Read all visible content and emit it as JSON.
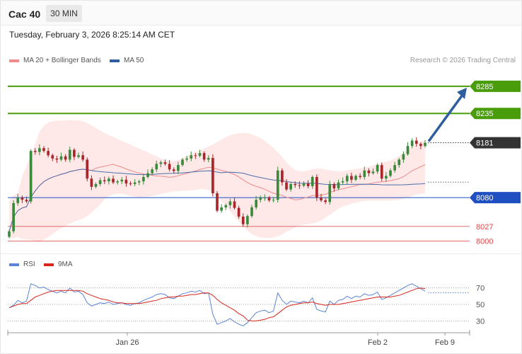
{
  "header": {
    "instrument": "Cac 40",
    "timeframe": "30 MIN",
    "datetime": "Tuesday, February 3, 2026 8:25:14 AM CET"
  },
  "legend": {
    "bollinger": "MA 20 + Bollinger Bands",
    "ma50": "MA 50",
    "copyright": "Research © 2026 Trading Central"
  },
  "rsi_legend": {
    "rsi": "RSI",
    "ma9": "9MA"
  },
  "colors": {
    "resistance": "#4a9d0a",
    "support": "#1f4fc0",
    "lower_support": "#e04848",
    "price": "#333333",
    "bollinger_fill": "#fde0e0",
    "ma20": "#f08a8a",
    "ma50": "#4a6da8",
    "arrow": "#2f5e9e",
    "rsi_line": "#5b84d6",
    "rsi_ma": "#d9261c",
    "candle_up": "#3b8a3b",
    "candle_down": "#a8272a"
  },
  "chart_data": {
    "type": "candlestick",
    "ylim": [
      7985,
      8320
    ],
    "levels": [
      {
        "label": "8285",
        "value": 8285,
        "kind": "resistance"
      },
      {
        "label": "8235",
        "value": 8235,
        "kind": "resistance"
      },
      {
        "label": "8181",
        "value": 8181,
        "kind": "price"
      },
      {
        "label": "8080",
        "value": 8080,
        "kind": "support"
      },
      {
        "label": "8027",
        "value": 8027,
        "kind": "lower_support"
      },
      {
        "label": "8000",
        "value": 8000,
        "kind": "lower_support"
      }
    ],
    "x_ticks": [
      "Jan 26",
      "Feb 2",
      "Feb 9"
    ],
    "forecast_target": 8285,
    "close": [
      8018,
      8070,
      8080,
      8076,
      8073,
      8166,
      8164,
      8171,
      8166,
      8158,
      8152,
      8150,
      8156,
      8150,
      8168,
      8155,
      8158,
      8150,
      8115,
      8100,
      8105,
      8112,
      8110,
      8115,
      8108,
      8110,
      8113,
      8106,
      8105,
      8108,
      8110,
      8118,
      8125,
      8132,
      8142,
      8145,
      8142,
      8132,
      8129,
      8140,
      8150,
      8152,
      8158,
      8157,
      8162,
      8150,
      8153,
      8088,
      8056,
      8062,
      8066,
      8073,
      8061,
      8045,
      8031,
      8046,
      8062,
      8076,
      8080,
      8080,
      8075,
      8076,
      8130,
      8108,
      8095,
      8105,
      8103,
      8102,
      8106,
      8101,
      8118,
      8080,
      8075,
      8072,
      8105,
      8097,
      8108,
      8110,
      8120,
      8113,
      8120,
      8118,
      8130,
      8125,
      8128,
      8140,
      8115,
      8120,
      8130,
      8140,
      8150,
      8160,
      8175,
      8185,
      8179,
      8175,
      8181
    ],
    "rsi": {
      "levels": [
        70,
        50,
        30
      ],
      "ylim": [
        20,
        80
      ],
      "values": [
        46,
        49,
        55,
        52,
        54,
        75,
        73,
        70,
        71,
        68,
        66,
        64,
        66,
        64,
        70,
        65,
        66,
        62,
        52,
        48,
        50,
        52,
        51,
        53,
        50,
        51,
        52,
        50,
        49,
        51,
        52,
        55,
        57,
        59,
        62,
        63,
        62,
        58,
        57,
        60,
        63,
        64,
        66,
        65,
        67,
        63,
        64,
        38,
        26,
        28,
        30,
        33,
        29,
        26,
        24,
        28,
        34,
        40,
        42,
        43,
        40,
        42,
        64,
        55,
        50,
        54,
        53,
        52,
        54,
        52,
        58,
        44,
        42,
        41,
        54,
        50,
        55,
        56,
        60,
        57,
        60,
        59,
        63,
        61,
        62,
        65,
        56,
        58,
        61,
        64,
        67,
        70,
        73,
        75,
        72,
        69,
        66
      ],
      "ma9": [
        46,
        48,
        50,
        51,
        51,
        55,
        59,
        61,
        63,
        65,
        66,
        67,
        67,
        67,
        67,
        67,
        67,
        66,
        63,
        61,
        59,
        57,
        56,
        55,
        53,
        52,
        52,
        51,
        51,
        51,
        51,
        52,
        53,
        54,
        55,
        57,
        58,
        59,
        59,
        60,
        60,
        61,
        62,
        62,
        63,
        64,
        64,
        61,
        56,
        52,
        49,
        46,
        43,
        39,
        36,
        31,
        30,
        30,
        31,
        32,
        34,
        35,
        39,
        43,
        47,
        49,
        50,
        51,
        52,
        52,
        53,
        51,
        50,
        49,
        50,
        50,
        50,
        51,
        52,
        53,
        54,
        55,
        56,
        57,
        58,
        59,
        59,
        59,
        59,
        60,
        61,
        63,
        65,
        67,
        69,
        70,
        69
      ]
    }
  }
}
